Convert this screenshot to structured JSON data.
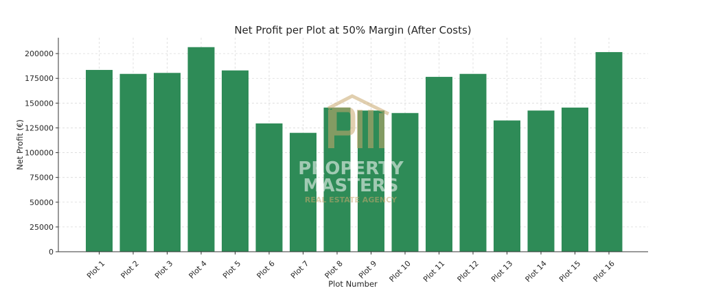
{
  "chart_data": {
    "type": "bar",
    "title": "Net Profit per Plot at 50% Margin (After Costs)",
    "xlabel": "Plot Number",
    "ylabel": "Net Profit (€)",
    "categories": [
      "Plot 1",
      "Plot 2",
      "Plot 3",
      "Plot 4",
      "Plot 5",
      "Plot 6",
      "Plot 7",
      "Plot 8",
      "Plot 9",
      "Plot 10",
      "Plot 11",
      "Plot 12",
      "Plot 13",
      "Plot 14",
      "Plot 15",
      "Plot 16"
    ],
    "values": [
      183500,
      179500,
      180500,
      206500,
      183000,
      129500,
      120000,
      145500,
      142500,
      140000,
      176500,
      179500,
      132500,
      142500,
      145500,
      201500
    ],
    "ylim": [
      0,
      216000
    ],
    "yticks": [
      0,
      25000,
      50000,
      75000,
      100000,
      125000,
      150000,
      175000,
      200000
    ],
    "yticklabels": [
      "0",
      "25000",
      "50000",
      "75000",
      "100000",
      "125000",
      "150000",
      "175000",
      "200000"
    ],
    "grid": true,
    "bar_color": "#2e8b57"
  },
  "watermark": {
    "line1": "PROPERTY",
    "line2": "MASTERS",
    "line3": "REAL ESTATE AGENCY",
    "logo_color": "#c9a96e",
    "text_color": "#ffffff"
  }
}
